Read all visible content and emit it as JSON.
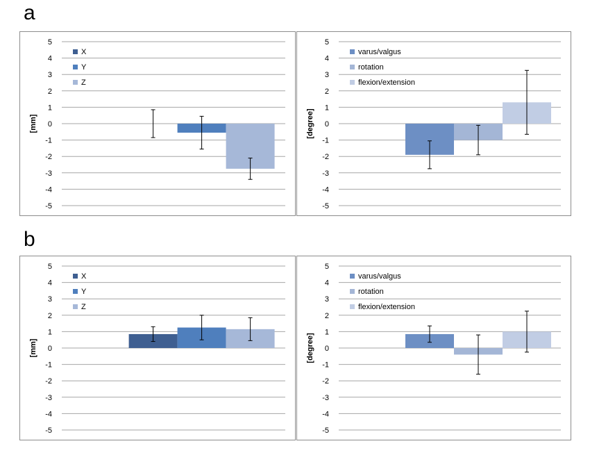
{
  "panels": {
    "a": {
      "label": "a"
    },
    "b": {
      "label": "b"
    }
  },
  "colors": {
    "series1": "#6d8fc4",
    "series2": "#a4b6d6",
    "series3": "#c1cde4",
    "x_series1": "#3f5f91",
    "x_series2": "#4f7fbd",
    "x_series3": "#a6b8d8",
    "grid": "#a6a6a6",
    "error_bar": "#000000"
  },
  "chart_data": [
    {
      "id": "a-translation",
      "type": "bar",
      "ylabel": "[mm]",
      "ylim": [
        -5,
        5
      ],
      "yticks": [
        "5",
        "4",
        "3",
        "2",
        "1",
        "0",
        "-1",
        "-2",
        "-3",
        "-4",
        "-5"
      ],
      "legend_position": "top-left",
      "grid": true,
      "series": [
        {
          "name": "X",
          "value": 0.0,
          "error": 0.85,
          "color": "#3f5f91"
        },
        {
          "name": "Y",
          "value": -0.55,
          "error": 1.0,
          "color": "#4f7fbd"
        },
        {
          "name": "Z",
          "value": -2.75,
          "error": 0.65,
          "color": "#a6b8d8"
        }
      ]
    },
    {
      "id": "a-rotation",
      "type": "bar",
      "ylabel": "[degree]",
      "ylim": [
        -5,
        5
      ],
      "yticks": [
        "5",
        "4",
        "3",
        "2",
        "1",
        "0",
        "-1",
        "-2",
        "-3",
        "-4",
        "-5"
      ],
      "legend_position": "top-left",
      "grid": true,
      "series": [
        {
          "name": "varus/valgus",
          "value": -1.9,
          "error": 0.85,
          "color": "#6d8fc4"
        },
        {
          "name": "rotation",
          "value": -1.0,
          "error": 0.9,
          "color": "#a4b6d6"
        },
        {
          "name": "flexion/extension",
          "value": 1.3,
          "error": 1.95,
          "color": "#c1cde4"
        }
      ]
    },
    {
      "id": "b-translation",
      "type": "bar",
      "ylabel": "[mm]",
      "ylim": [
        -5,
        5
      ],
      "yticks": [
        "5",
        "4",
        "3",
        "2",
        "1",
        "0",
        "-1",
        "-2",
        "-3",
        "-4",
        "-5"
      ],
      "legend_position": "top-left",
      "grid": true,
      "series": [
        {
          "name": "X",
          "value": 0.85,
          "error": 0.45,
          "color": "#3f5f91"
        },
        {
          "name": "Y",
          "value": 1.25,
          "error": 0.75,
          "color": "#4f7fbd"
        },
        {
          "name": "Z",
          "value": 1.15,
          "error": 0.7,
          "color": "#a6b8d8"
        }
      ]
    },
    {
      "id": "b-rotation",
      "type": "bar",
      "ylabel": "[degree]",
      "ylim": [
        -5,
        5
      ],
      "yticks": [
        "5",
        "4",
        "3",
        "2",
        "1",
        "0",
        "-1",
        "-2",
        "-3",
        "-4",
        "-5"
      ],
      "legend_position": "top-left",
      "grid": true,
      "series": [
        {
          "name": "varus/valgus",
          "value": 0.85,
          "error": 0.5,
          "color": "#6d8fc4"
        },
        {
          "name": "rotation",
          "value": -0.4,
          "error": 1.2,
          "color": "#a4b6d6"
        },
        {
          "name": "flexion/extension",
          "value": 1.0,
          "error": 1.25,
          "color": "#c1cde4"
        }
      ]
    }
  ]
}
